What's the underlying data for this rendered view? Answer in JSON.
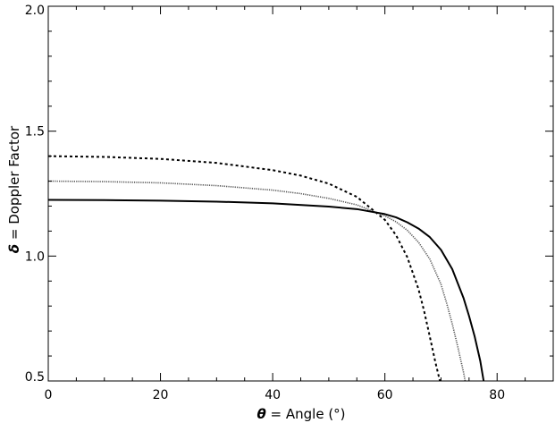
{
  "chart_data": {
    "type": "line",
    "xlabel": {
      "symbol": "θ",
      "text": " = Angle (°)"
    },
    "ylabel": {
      "symbol": "δ",
      "text": " = Doppler Factor"
    },
    "xlim": [
      0,
      90
    ],
    "ylim": [
      0.5,
      2.0
    ],
    "x_ticks": [
      0,
      20,
      40,
      60,
      80
    ],
    "x_tick_labels": [
      "0",
      "20",
      "40",
      "60",
      "80"
    ],
    "y_ticks": [
      0.5,
      1.0,
      1.5,
      2.0
    ],
    "y_tick_labels": [
      "0.5",
      "1.0",
      "1.5",
      "2.0"
    ],
    "grid": false,
    "legend": "none",
    "series": [
      {
        "style": "dashed",
        "color": "#000000",
        "x": [
          0,
          10,
          20,
          30,
          40,
          45,
          50,
          55,
          60,
          62,
          64,
          66,
          67,
          68,
          69,
          69.8
        ],
        "y": [
          1.4,
          1.397,
          1.389,
          1.373,
          1.344,
          1.322,
          1.29,
          1.237,
          1.145,
          1.083,
          0.995,
          0.867,
          0.779,
          0.678,
          0.575,
          0.5
        ]
      },
      {
        "style": "dotted",
        "color": "#555555",
        "x": [
          0,
          10,
          20,
          30,
          40,
          45,
          50,
          55,
          60,
          62,
          64,
          66,
          68,
          70,
          71,
          72,
          73,
          74,
          74.3
        ],
        "y": [
          1.3,
          1.298,
          1.293,
          1.282,
          1.264,
          1.25,
          1.231,
          1.205,
          1.161,
          1.137,
          1.103,
          1.055,
          0.988,
          0.887,
          0.812,
          0.729,
          0.636,
          0.536,
          0.5
        ]
      },
      {
        "style": "solid",
        "color": "#000000",
        "x": [
          0,
          10,
          20,
          30,
          40,
          50,
          55,
          60,
          62,
          64,
          66,
          68,
          70,
          72,
          74,
          75,
          76,
          77,
          77.6
        ],
        "y": [
          1.225,
          1.224,
          1.222,
          1.218,
          1.211,
          1.198,
          1.188,
          1.168,
          1.155,
          1.135,
          1.11,
          1.076,
          1.025,
          0.948,
          0.833,
          0.76,
          0.678,
          0.58,
          0.5
        ]
      }
    ]
  }
}
